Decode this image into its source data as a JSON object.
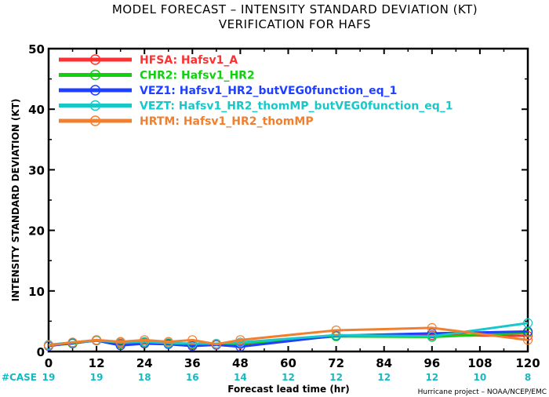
{
  "title_line1": "MODEL FORECAST – INTENSITY STANDARD DEVIATION (KT)",
  "title_line2": "VERIFICATION FOR HAFS",
  "footer": "Hurricane project – NOAA/NCEP/EMC",
  "chart_data": {
    "type": "line",
    "xlabel": "Forecast lead time (hr)",
    "ylabel": "INTENSITY STANDARD DEVIATION (KT)",
    "xlim": [
      0,
      120
    ],
    "ylim": [
      0,
      50
    ],
    "xticks": [
      0,
      12,
      24,
      36,
      48,
      60,
      72,
      84,
      96,
      108,
      120
    ],
    "yticks": [
      0,
      10,
      20,
      30,
      40,
      50
    ],
    "grid": false,
    "legend_position": "top-left",
    "cases_label": "#CASE",
    "cases": [
      {
        "x": 0,
        "n": "19"
      },
      {
        "x": 12,
        "n": "19"
      },
      {
        "x": 24,
        "n": "18"
      },
      {
        "x": 36,
        "n": "16"
      },
      {
        "x": 48,
        "n": "14"
      },
      {
        "x": 60,
        "n": "12"
      },
      {
        "x": 72,
        "n": "12"
      },
      {
        "x": 84,
        "n": "12"
      },
      {
        "x": 96,
        "n": "12"
      },
      {
        "x": 108,
        "n": "10"
      },
      {
        "x": 120,
        "n": "8"
      }
    ],
    "series": [
      {
        "name": "HFSA: Hafsv1_A",
        "color": "#ff3030",
        "x": [
          0,
          6,
          12,
          18,
          24,
          30,
          36,
          42,
          48,
          72,
          96,
          120
        ],
        "values": [
          1.0,
          1.4,
          1.8,
          1.3,
          1.4,
          1.3,
          1.1,
          1.1,
          1.2,
          2.6,
          2.7,
          2.6
        ]
      },
      {
        "name": "CHR2: Hafsv1_HR2",
        "color": "#10d010",
        "x": [
          0,
          6,
          12,
          18,
          24,
          30,
          36,
          42,
          48,
          72,
          96,
          120
        ],
        "values": [
          1.0,
          1.3,
          1.9,
          1.2,
          1.5,
          1.3,
          1.2,
          1.1,
          1.3,
          2.5,
          2.4,
          3.1
        ]
      },
      {
        "name": "VEZ1: Hafsv1_HR2_butVEG0function_eq_1",
        "color": "#2040ff",
        "x": [
          0,
          6,
          12,
          18,
          24,
          30,
          36,
          42,
          48,
          72,
          96,
          120
        ],
        "values": [
          0.9,
          1.4,
          1.8,
          1.0,
          1.3,
          1.2,
          0.9,
          1.1,
          0.8,
          2.6,
          3.0,
          3.3
        ]
      },
      {
        "name": "VEZT: Hafsv1_HR2_thomMP_butVEG0function_eq_1",
        "color": "#18c8c8",
        "x": [
          0,
          6,
          12,
          18,
          24,
          30,
          36,
          42,
          48,
          72,
          96,
          120
        ],
        "values": [
          1.1,
          1.5,
          1.8,
          1.5,
          1.6,
          1.4,
          1.3,
          1.3,
          1.5,
          2.7,
          2.5,
          4.7
        ]
      },
      {
        "name": "HRTM: Hafsv1_HR2_thomMP",
        "color": "#f08030",
        "x": [
          0,
          6,
          12,
          18,
          24,
          30,
          36,
          42,
          48,
          72,
          96,
          120
        ],
        "values": [
          1.0,
          1.5,
          1.9,
          1.6,
          1.9,
          1.6,
          1.9,
          1.2,
          1.9,
          3.5,
          3.9,
          1.9
        ]
      }
    ]
  }
}
